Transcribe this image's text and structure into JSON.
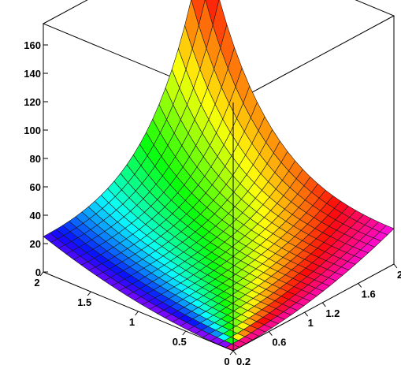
{
  "chart_data": {
    "type": "surface3d",
    "title": "",
    "xlabel": "",
    "ylabel": "",
    "zlabel": "",
    "z_ticks": [
      "0",
      "20",
      "40",
      "60",
      "80",
      "100",
      "120",
      "140",
      "160"
    ],
    "z_tick_values": [
      0,
      20,
      40,
      60,
      80,
      100,
      120,
      140,
      160
    ],
    "y_ticks": [
      "2",
      "1.5",
      "1",
      "0.5",
      "0"
    ],
    "y_tick_values": [
      2,
      1.5,
      1,
      0.5,
      0
    ],
    "x_ticks": [
      "0.2",
      "0.6",
      "1",
      "1.2",
      "1.6",
      "2"
    ],
    "x_tick_values": [
      0.2,
      0.6,
      1.0,
      1.2,
      1.6,
      2.0
    ],
    "x_range": [
      0.2,
      2
    ],
    "y_range": [
      0,
      2
    ],
    "z_range": [
      0,
      175
    ],
    "corner_values": {
      "x_min_y_min": 0,
      "x_max_y_min": 25,
      "x_min_y_max": 25,
      "x_max_y_max": 175
    },
    "grid_lines": 25,
    "colormap": "hue rainbow",
    "bounding_box": true
  }
}
